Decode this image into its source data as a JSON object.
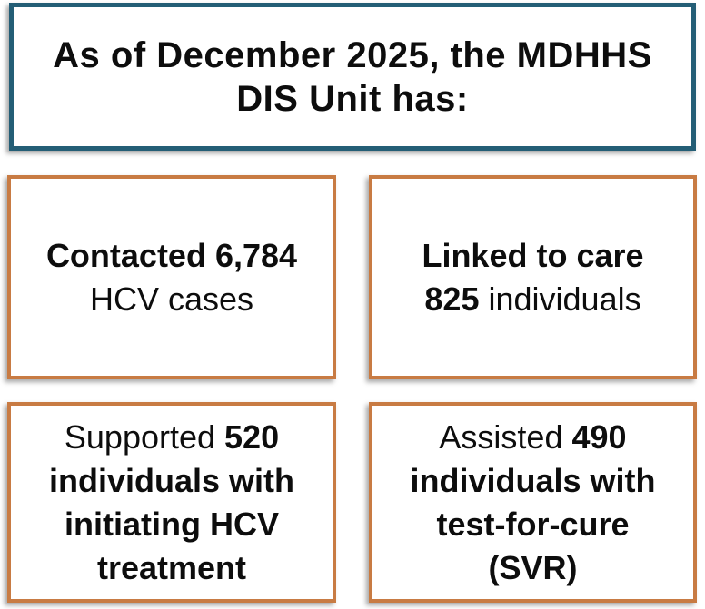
{
  "colors": {
    "teal_border": "#245E76",
    "orange_border": "#C87B43",
    "text": "#0D0D0D",
    "background": "#FFFFFF"
  },
  "header": {
    "line1": "As of December 2025, the MDHHS",
    "line2": "DIS Unit has:"
  },
  "stats": [
    {
      "name": "contacted-hcv-cases",
      "lines": [
        [
          {
            "t": "Contacted 6,784",
            "b": true
          }
        ],
        [
          {
            "t": "HCV cases",
            "b": false
          }
        ]
      ]
    },
    {
      "name": "linked-to-care",
      "lines": [
        [
          {
            "t": "Linked to care",
            "b": true
          }
        ],
        [
          {
            "t": "825",
            "b": true
          },
          {
            "t": " individuals",
            "b": false
          }
        ]
      ]
    },
    {
      "name": "supported-hcv-treatment",
      "lines": [
        [
          {
            "t": "Supported ",
            "b": false
          },
          {
            "t": "520",
            "b": true
          }
        ],
        [
          {
            "t": "individuals with",
            "b": true
          }
        ],
        [
          {
            "t": "initiating HCV",
            "b": true
          }
        ],
        [
          {
            "t": "treatment",
            "b": true
          }
        ]
      ]
    },
    {
      "name": "assisted-test-for-cure-svr",
      "lines": [
        [
          {
            "t": "Assisted ",
            "b": false
          },
          {
            "t": "490",
            "b": true
          }
        ],
        [
          {
            "t": "individuals with",
            "b": true
          }
        ],
        [
          {
            "t": "test-for-cure",
            "b": true
          }
        ],
        [
          {
            "t": "(SVR)",
            "b": true
          }
        ]
      ]
    }
  ]
}
